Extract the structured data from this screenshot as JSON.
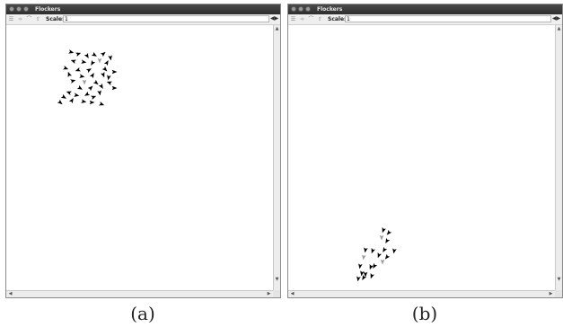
{
  "window_title": "Flockers",
  "toolbar": {
    "scale_label": "Scale:",
    "scale_value": "1",
    "arrows": "◀▶"
  },
  "icons": [
    "layers-icon",
    "movie-icon",
    "options-icon",
    "zoom-icon"
  ],
  "captions": {
    "a": "(a)",
    "b": "(b)"
  },
  "colors": {
    "titlebar": "#3a3a3a",
    "flocker": "#000000",
    "dead_flocker": "#9a9a9a",
    "canvas": "#ffffff"
  },
  "flockers_a": [
    {
      "x": 72,
      "y": 30,
      "a": 15,
      "c": 0
    },
    {
      "x": 80,
      "y": 32,
      "a": -20,
      "c": 0
    },
    {
      "x": 90,
      "y": 34,
      "a": 60,
      "c": 0
    },
    {
      "x": 98,
      "y": 33,
      "a": 30,
      "c": 0
    },
    {
      "x": 108,
      "y": 32,
      "a": -40,
      "c": 0
    },
    {
      "x": 116,
      "y": 36,
      "a": 80,
      "c": 0
    },
    {
      "x": 75,
      "y": 40,
      "a": 200,
      "c": 0
    },
    {
      "x": 86,
      "y": 41,
      "a": 10,
      "c": 0
    },
    {
      "x": 96,
      "y": 42,
      "a": 120,
      "c": 0
    },
    {
      "x": 104,
      "y": 39,
      "a": 90,
      "c": 1
    },
    {
      "x": 112,
      "y": 42,
      "a": -60,
      "c": 0
    },
    {
      "x": 66,
      "y": 48,
      "a": 20,
      "c": 0
    },
    {
      "x": 80,
      "y": 50,
      "a": 160,
      "c": 0
    },
    {
      "x": 92,
      "y": 50,
      "a": -30,
      "c": 0
    },
    {
      "x": 110,
      "y": 49,
      "a": 45,
      "c": 0
    },
    {
      "x": 120,
      "y": 52,
      "a": 0,
      "c": 0
    },
    {
      "x": 70,
      "y": 55,
      "a": 250,
      "c": 0
    },
    {
      "x": 84,
      "y": 57,
      "a": 10,
      "c": 0
    },
    {
      "x": 96,
      "y": 56,
      "a": 300,
      "c": 0
    },
    {
      "x": 108,
      "y": 55,
      "a": 70,
      "c": 0
    },
    {
      "x": 114,
      "y": 58,
      "a": 100,
      "c": 0
    },
    {
      "x": 74,
      "y": 62,
      "a": -15,
      "c": 0
    },
    {
      "x": 87,
      "y": 63,
      "a": 90,
      "c": 1
    },
    {
      "x": 100,
      "y": 64,
      "a": 40,
      "c": 0
    },
    {
      "x": 115,
      "y": 64,
      "a": 200,
      "c": 0
    },
    {
      "x": 120,
      "y": 70,
      "a": 0,
      "c": 0
    },
    {
      "x": 82,
      "y": 70,
      "a": 30,
      "c": 0
    },
    {
      "x": 94,
      "y": 70,
      "a": -45,
      "c": 0
    },
    {
      "x": 106,
      "y": 68,
      "a": 60,
      "c": 0
    },
    {
      "x": 70,
      "y": 75,
      "a": 200,
      "c": 0
    },
    {
      "x": 78,
      "y": 78,
      "a": 10,
      "c": 0
    },
    {
      "x": 90,
      "y": 77,
      "a": 150,
      "c": 0
    },
    {
      "x": 97,
      "y": 80,
      "a": -20,
      "c": 0
    },
    {
      "x": 104,
      "y": 75,
      "a": 80,
      "c": 0
    },
    {
      "x": 64,
      "y": 80,
      "a": 30,
      "c": 0
    },
    {
      "x": 73,
      "y": 84,
      "a": -60,
      "c": 0
    },
    {
      "x": 86,
      "y": 85,
      "a": 10,
      "c": 0
    },
    {
      "x": 95,
      "y": 86,
      "a": 0,
      "c": 0
    },
    {
      "x": 106,
      "y": 88,
      "a": 20,
      "c": 0
    },
    {
      "x": 60,
      "y": 86,
      "a": 40,
      "c": 0
    }
  ],
  "flockers_b": [
    {
      "x": 106,
      "y": 228,
      "a": 110,
      "c": 0
    },
    {
      "x": 112,
      "y": 231,
      "a": 130,
      "c": 0
    },
    {
      "x": 104,
      "y": 236,
      "a": 90,
      "c": 1
    },
    {
      "x": 110,
      "y": 240,
      "a": 120,
      "c": 0
    },
    {
      "x": 86,
      "y": 250,
      "a": 100,
      "c": 0
    },
    {
      "x": 94,
      "y": 251,
      "a": 110,
      "c": 0
    },
    {
      "x": 107,
      "y": 250,
      "a": 120,
      "c": 0
    },
    {
      "x": 118,
      "y": 251,
      "a": 100,
      "c": 0
    },
    {
      "x": 84,
      "y": 258,
      "a": 100,
      "c": 1
    },
    {
      "x": 101,
      "y": 256,
      "a": 110,
      "c": 0
    },
    {
      "x": 110,
      "y": 258,
      "a": 130,
      "c": 0
    },
    {
      "x": 105,
      "y": 263,
      "a": 90,
      "c": 1
    },
    {
      "x": 80,
      "y": 268,
      "a": 100,
      "c": 0
    },
    {
      "x": 92,
      "y": 269,
      "a": 110,
      "c": 0
    },
    {
      "x": 96,
      "y": 268,
      "a": 120,
      "c": 0
    },
    {
      "x": 82,
      "y": 276,
      "a": 100,
      "c": 0
    },
    {
      "x": 86,
      "y": 277,
      "a": 90,
      "c": 0
    },
    {
      "x": 93,
      "y": 279,
      "a": 110,
      "c": 0
    },
    {
      "x": 78,
      "y": 282,
      "a": 100,
      "c": 0
    },
    {
      "x": 84,
      "y": 281,
      "a": 120,
      "c": 0
    }
  ]
}
